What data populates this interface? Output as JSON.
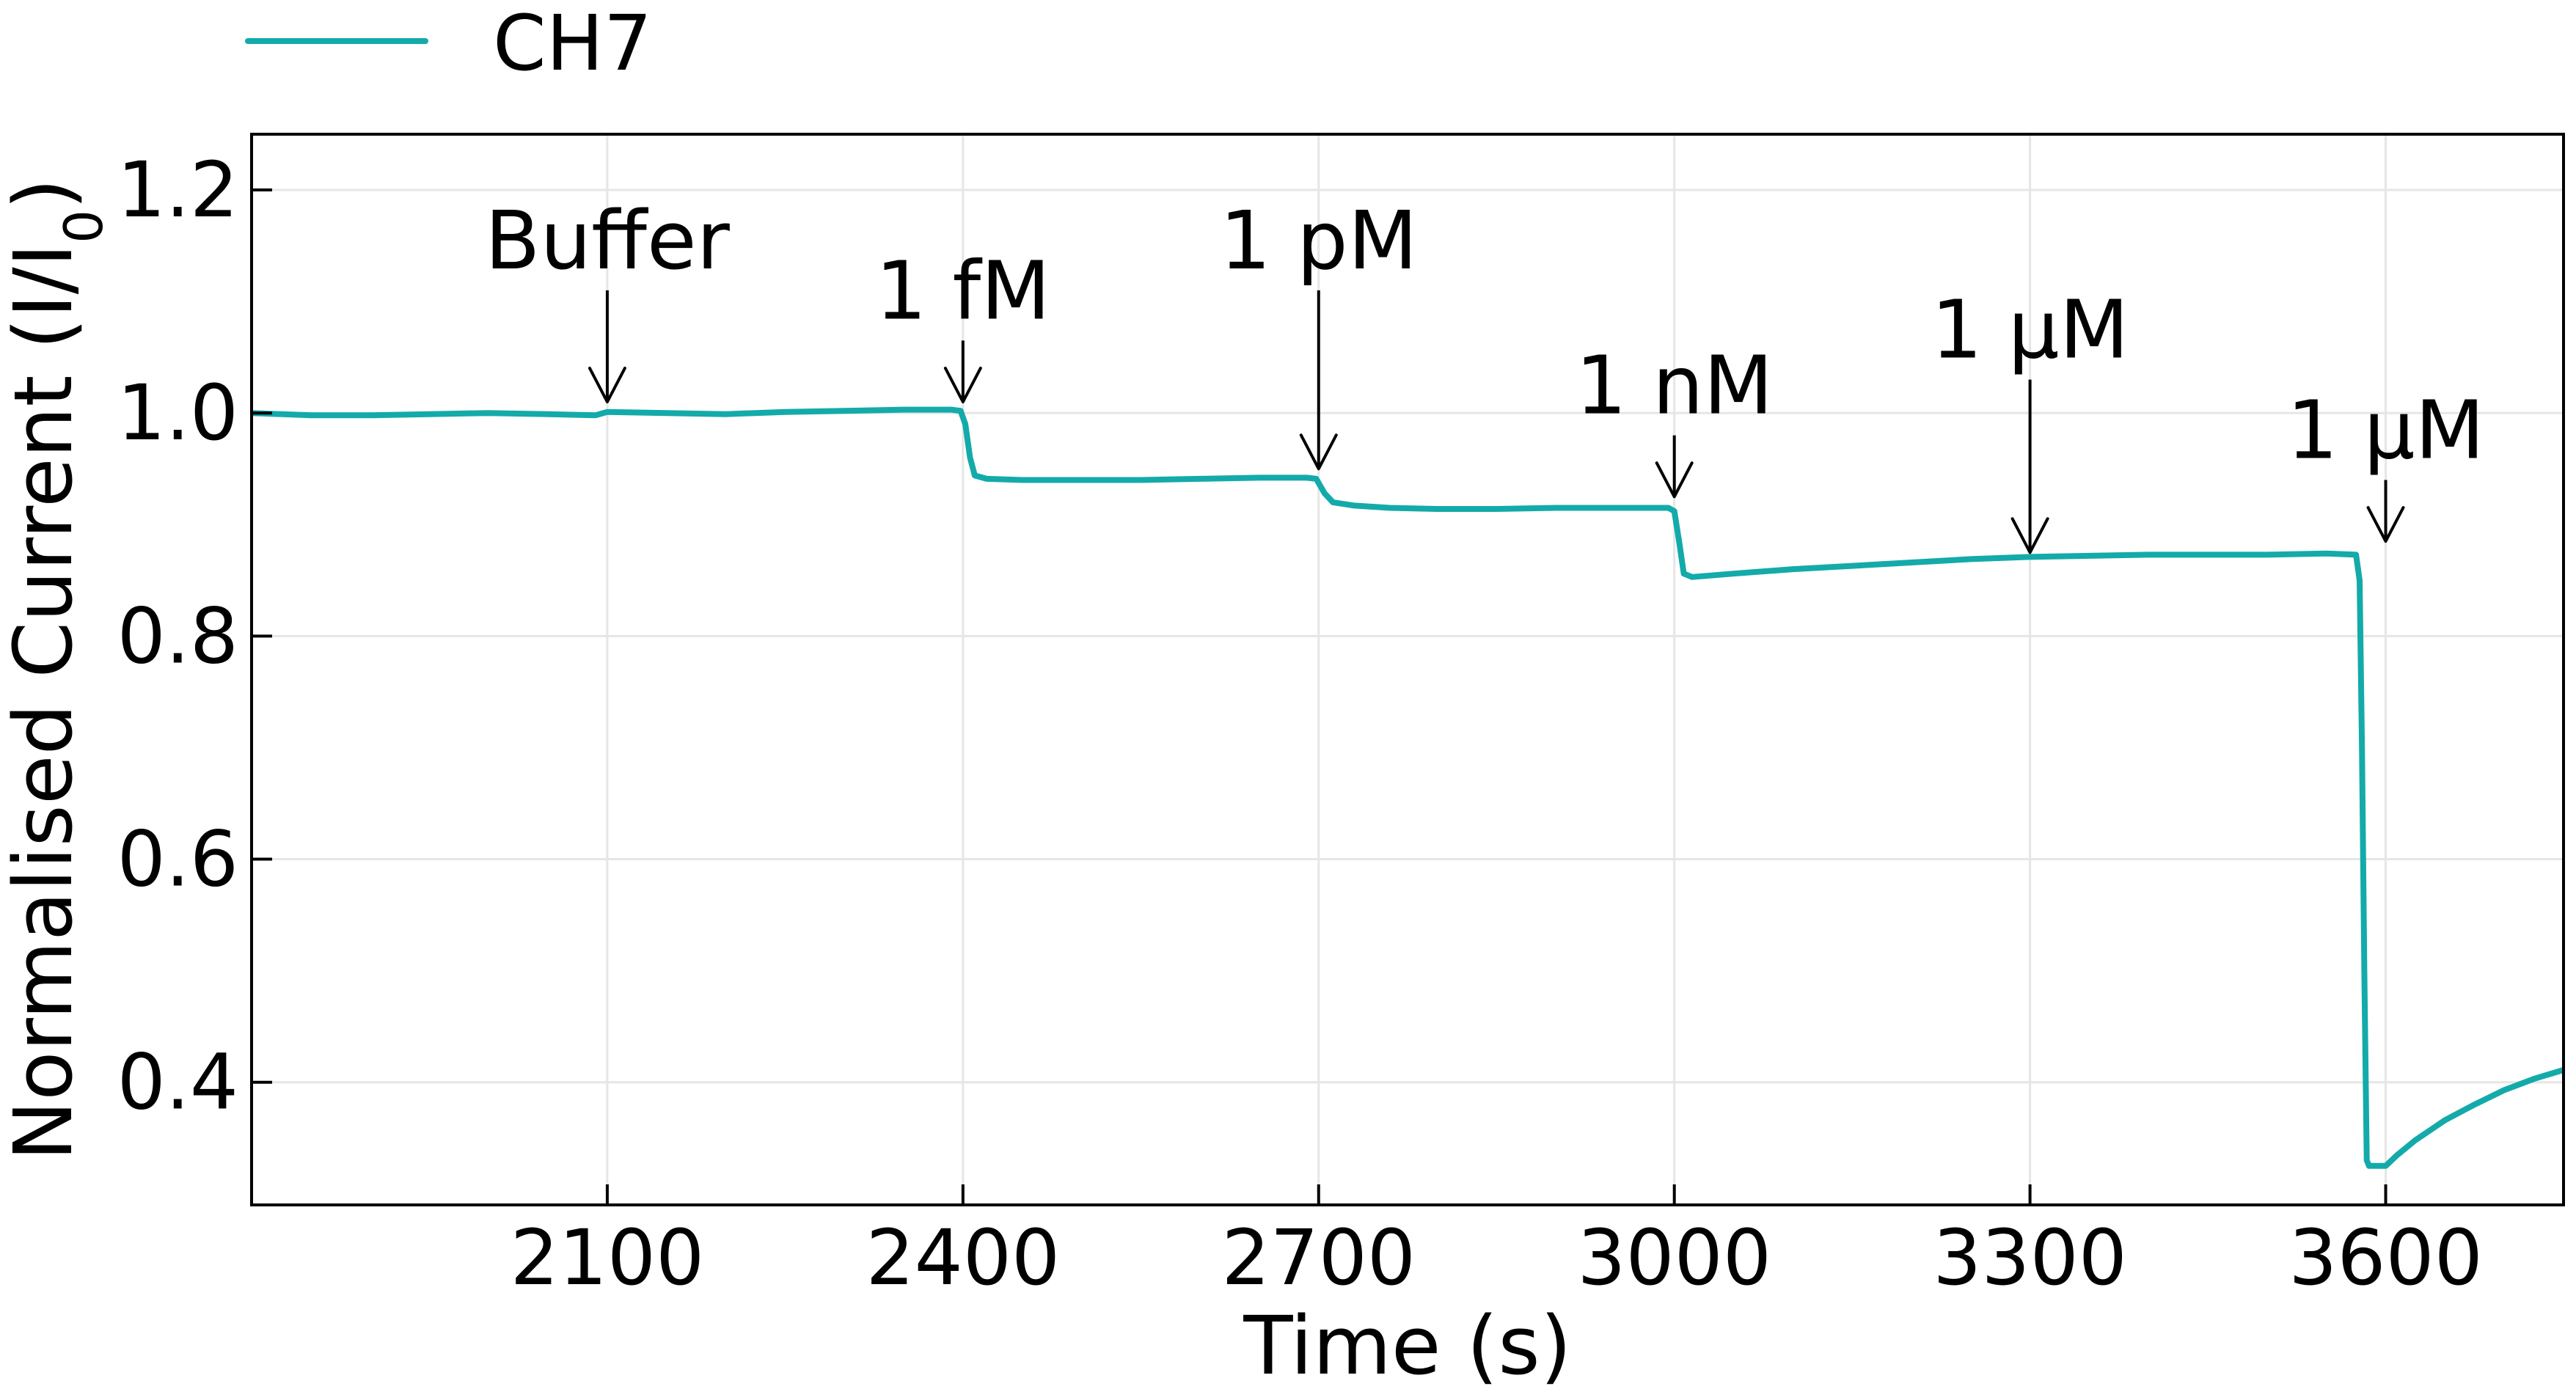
{
  "chart_data": {
    "type": "line",
    "xlabel": "Time (s)",
    "ylabel": "Normalised Current (I/I0)",
    "ylabel_parts": {
      "main": "Normalised Current (I/I",
      "sub": "0",
      "tail": ")"
    },
    "xlim": [
      1800,
      3750
    ],
    "ylim": [
      0.29,
      1.25
    ],
    "xticks": [
      2100,
      2400,
      2700,
      3000,
      3300,
      3600
    ],
    "yticks": [
      0.4,
      0.6,
      0.8,
      1.0,
      1.2
    ],
    "xtick_labels": [
      "2100",
      "2400",
      "2700",
      "3000",
      "3300",
      "3600"
    ],
    "ytick_labels": [
      "0.4",
      "0.6",
      "0.8",
      "1.0",
      "1.2"
    ],
    "grid": true,
    "legend_position": "top-left, outside",
    "series": [
      {
        "name": "CH7",
        "color": "#14aaaa",
        "points": [
          [
            1800,
            1.0
          ],
          [
            1850,
            0.998
          ],
          [
            1900,
            0.998
          ],
          [
            1950,
            0.999
          ],
          [
            2000,
            1.0
          ],
          [
            2050,
            0.999
          ],
          [
            2090,
            0.998
          ],
          [
            2100,
            1.001
          ],
          [
            2150,
            1.0
          ],
          [
            2200,
            0.999
          ],
          [
            2250,
            1.001
          ],
          [
            2300,
            1.002
          ],
          [
            2350,
            1.003
          ],
          [
            2390,
            1.003
          ],
          [
            2398,
            1.002
          ],
          [
            2402,
            0.99
          ],
          [
            2406,
            0.96
          ],
          [
            2410,
            0.944
          ],
          [
            2420,
            0.941
          ],
          [
            2450,
            0.94
          ],
          [
            2500,
            0.94
          ],
          [
            2550,
            0.94
          ],
          [
            2600,
            0.941
          ],
          [
            2650,
            0.942
          ],
          [
            2690,
            0.942
          ],
          [
            2698,
            0.941
          ],
          [
            2705,
            0.928
          ],
          [
            2712,
            0.92
          ],
          [
            2730,
            0.917
          ],
          [
            2760,
            0.915
          ],
          [
            2800,
            0.914
          ],
          [
            2850,
            0.914
          ],
          [
            2900,
            0.915
          ],
          [
            2950,
            0.915
          ],
          [
            2995,
            0.915
          ],
          [
            3000,
            0.912
          ],
          [
            3004,
            0.885
          ],
          [
            3008,
            0.856
          ],
          [
            3015,
            0.853
          ],
          [
            3050,
            0.856
          ],
          [
            3100,
            0.86
          ],
          [
            3150,
            0.863
          ],
          [
            3200,
            0.866
          ],
          [
            3250,
            0.869
          ],
          [
            3300,
            0.871
          ],
          [
            3350,
            0.872
          ],
          [
            3400,
            0.873
          ],
          [
            3450,
            0.873
          ],
          [
            3500,
            0.873
          ],
          [
            3550,
            0.874
          ],
          [
            3575,
            0.873
          ],
          [
            3578,
            0.85
          ],
          [
            3580,
            0.7
          ],
          [
            3582,
            0.5
          ],
          [
            3584,
            0.33
          ],
          [
            3586,
            0.325
          ],
          [
            3600,
            0.325
          ],
          [
            3610,
            0.335
          ],
          [
            3625,
            0.348
          ],
          [
            3650,
            0.366
          ],
          [
            3675,
            0.38
          ],
          [
            3700,
            0.393
          ],
          [
            3725,
            0.403
          ],
          [
            3750,
            0.411
          ],
          [
            3770,
            0.417
          ],
          [
            3782,
            0.421
          ]
        ]
      }
    ],
    "annotations": [
      {
        "label": "Buffer",
        "x": 2100,
        "tail_y": 1.11,
        "head_y": 1.01
      },
      {
        "label": "1 fM",
        "x": 2400,
        "tail_y": 1.065,
        "head_y": 1.01
      },
      {
        "label": "1 pM",
        "x": 2700,
        "tail_y": 1.11,
        "head_y": 0.95
      },
      {
        "label": "1 nM",
        "x": 3000,
        "tail_y": 0.98,
        "head_y": 0.925
      },
      {
        "label": "1 μM",
        "x": 3300,
        "tail_y": 1.03,
        "head_y": 0.875
      },
      {
        "label": "1 μM",
        "x": 3600,
        "tail_y": 0.94,
        "head_y": 0.885
      }
    ]
  }
}
